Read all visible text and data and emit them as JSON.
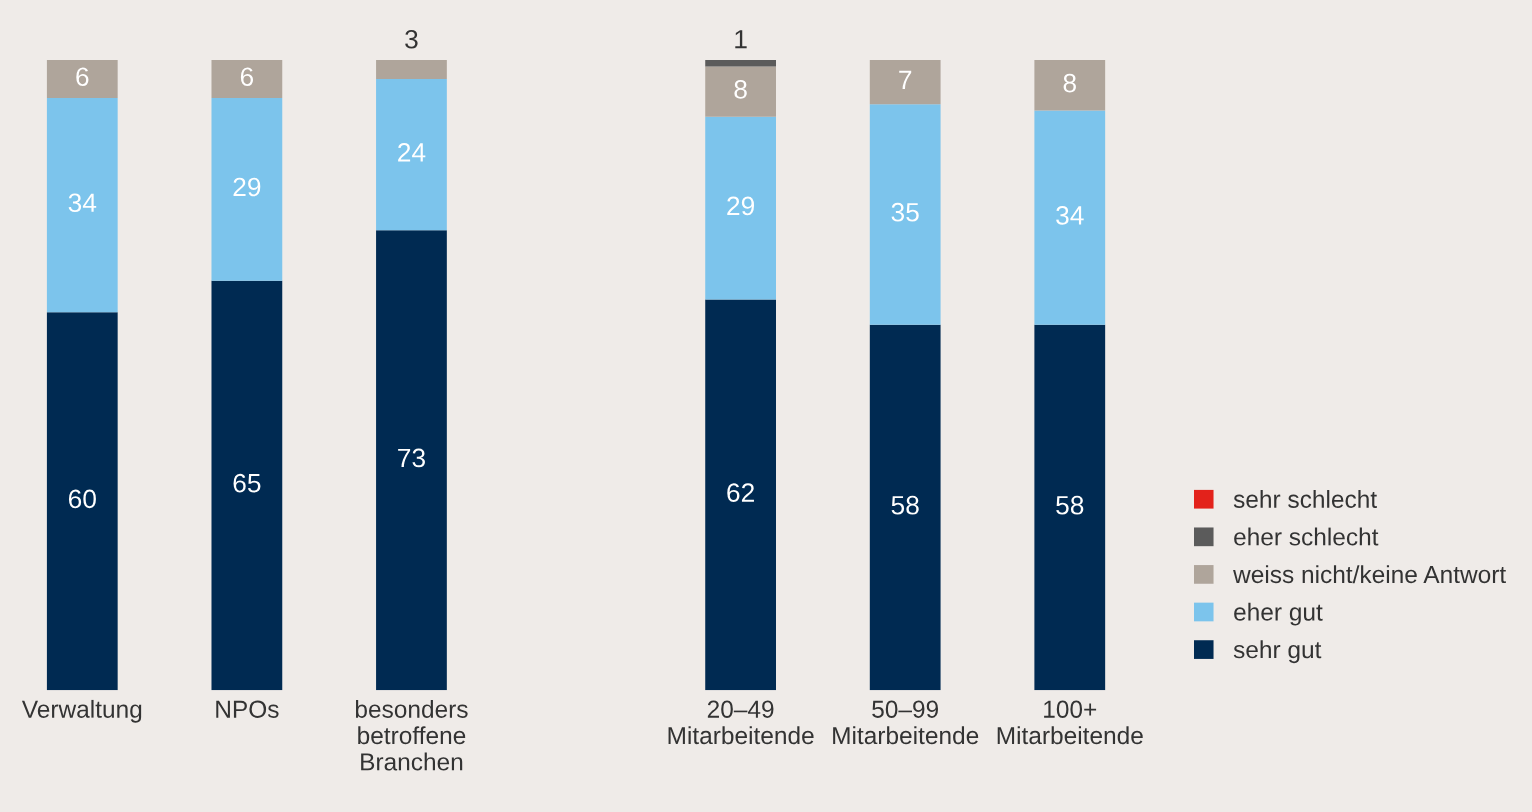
{
  "chart_data": {
    "type": "bar",
    "stacked": true,
    "categories": [
      "Verwaltung",
      "NPOs",
      "besonders\nbetroffene\nBranchen",
      null,
      "20–49\nMitarbeitende",
      "50–99\nMitarbeitende",
      "100+\nMitarbeitende"
    ],
    "ylim": [
      0,
      100
    ],
    "tick_labels": "x",
    "legend": "right",
    "grid": false,
    "series": [
      {
        "name": "sehr gut",
        "color": "#002a52",
        "values": [
          60,
          65,
          73,
          null,
          62,
          58,
          58
        ],
        "value_labels": [
          "60",
          "65",
          "73",
          null,
          "62",
          "58",
          "58"
        ]
      },
      {
        "name": "eher gut",
        "color": "#7cc4ec",
        "values": [
          34,
          29,
          24,
          null,
          29,
          35,
          34
        ],
        "value_labels": [
          "34",
          "29",
          "24",
          null,
          "29",
          "35",
          "34"
        ]
      },
      {
        "name": "weiss nicht/keine Antwort",
        "color": "#afa59b",
        "values": [
          6,
          6,
          3,
          null,
          8,
          7,
          8
        ],
        "value_labels": [
          "6",
          "6",
          "3",
          null,
          "8",
          "7",
          "8"
        ]
      },
      {
        "name": "eher schlecht",
        "color": "#5b5b5b",
        "values": [
          0,
          0,
          0,
          null,
          1,
          0,
          0
        ],
        "value_labels": [
          null,
          null,
          null,
          null,
          "1",
          null,
          null
        ]
      },
      {
        "name": "sehr schlecht",
        "color": "#e3221b",
        "values": [
          0,
          0,
          0,
          null,
          0,
          0,
          0
        ],
        "value_labels": [
          null,
          null,
          null,
          null,
          null,
          null,
          null
        ]
      }
    ]
  }
}
